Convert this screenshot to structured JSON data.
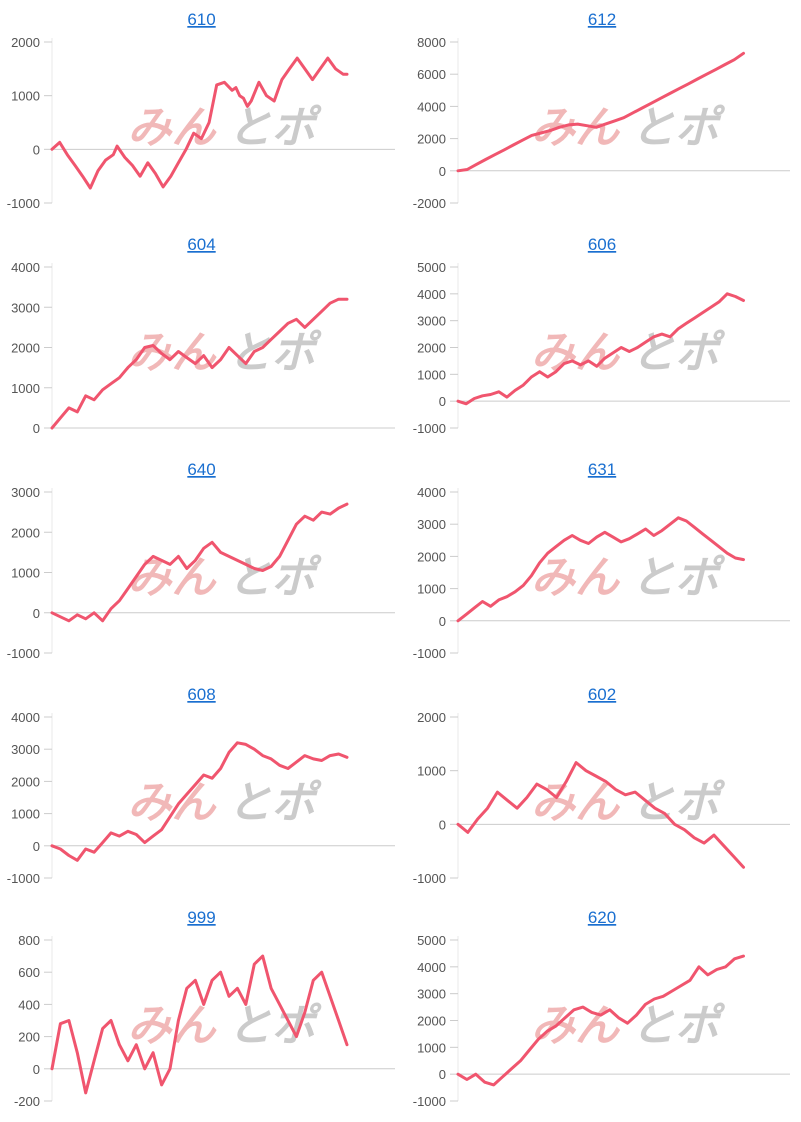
{
  "colors": {
    "line": "#f0556e",
    "title": "#1a6fd0",
    "tick_label": "#555555",
    "baseline": "#cccccc",
    "axis": "#e8e8e8",
    "watermark_left": "#e88a8a",
    "watermark_right": "#a9a9a9"
  },
  "watermark": {
    "left": "みん",
    "right": "とポ"
  },
  "chart_data": [
    {
      "type": "line",
      "title": "610",
      "ylim": [
        -1000,
        2000
      ],
      "yticks": [
        2000,
        1000,
        0,
        -1000
      ],
      "grid": false,
      "x": [
        0,
        2,
        4,
        6,
        8,
        10,
        12,
        14,
        16,
        17,
        19,
        21,
        23,
        25,
        27,
        29,
        31,
        33,
        35,
        37,
        39,
        41,
        43,
        45,
        47,
        48,
        49,
        50,
        51,
        52,
        54,
        56,
        58,
        59,
        60,
        62,
        64,
        66,
        68,
        70,
        72,
        74,
        76,
        77
      ],
      "values": [
        0,
        130,
        -100,
        -300,
        -500,
        -720,
        -400,
        -200,
        -100,
        60,
        -150,
        -300,
        -500,
        -250,
        -450,
        -700,
        -500,
        -250,
        0,
        300,
        200,
        500,
        1200,
        1250,
        1100,
        1150,
        1000,
        950,
        800,
        900,
        1250,
        1000,
        900,
        1100,
        1300,
        1500,
        1700,
        1500,
        1300,
        1500,
        1700,
        1500,
        1400,
        1400
      ]
    },
    {
      "type": "line",
      "title": "612",
      "ylim": [
        -2000,
        8000
      ],
      "yticks": [
        8000,
        6000,
        4000,
        2000,
        0,
        -2000
      ],
      "grid": false,
      "x": [
        0,
        2,
        4,
        6,
        8,
        10,
        12,
        14,
        16,
        18,
        20,
        22,
        24,
        26,
        28,
        30,
        32,
        34,
        36,
        38,
        40,
        42,
        44,
        46,
        48,
        50,
        52,
        54,
        56,
        58,
        60,
        62
      ],
      "values": [
        0,
        80,
        400,
        700,
        1000,
        1300,
        1600,
        1900,
        2200,
        2350,
        2500,
        2700,
        2850,
        2900,
        2800,
        2700,
        2900,
        3100,
        3300,
        3600,
        3900,
        4200,
        4500,
        4800,
        5100,
        5400,
        5700,
        6000,
        6300,
        6600,
        6900,
        7300
      ]
    },
    {
      "type": "line",
      "title": "604",
      "ylim": [
        0,
        4000
      ],
      "yticks": [
        4000,
        3000,
        2000,
        1000,
        0
      ],
      "grid": false,
      "x": [
        0,
        2,
        4,
        6,
        8,
        10,
        12,
        14,
        16,
        18,
        20,
        22,
        24,
        26,
        28,
        30,
        32,
        34,
        36,
        38,
        40,
        42,
        44,
        46,
        48,
        50,
        52,
        54,
        56,
        58,
        60,
        62,
        64,
        66,
        68,
        70
      ],
      "values": [
        0,
        250,
        500,
        400,
        800,
        700,
        950,
        1100,
        1250,
        1500,
        1700,
        2000,
        2050,
        1850,
        1700,
        1900,
        1750,
        1600,
        1800,
        1500,
        1700,
        2000,
        1800,
        1600,
        1900,
        2000,
        2200,
        2400,
        2600,
        2700,
        2500,
        2700,
        2900,
        3100,
        3200,
        3200
      ]
    },
    {
      "type": "line",
      "title": "606",
      "ylim": [
        -1000,
        5000
      ],
      "yticks": [
        5000,
        4000,
        3000,
        2000,
        1000,
        0,
        -1000
      ],
      "grid": false,
      "x": [
        0,
        2,
        4,
        6,
        8,
        10,
        12,
        14,
        16,
        18,
        20,
        22,
        24,
        26,
        28,
        30,
        32,
        34,
        36,
        38,
        40,
        42,
        44,
        46,
        48,
        50,
        52,
        54,
        56,
        58,
        60,
        62,
        64,
        66,
        68,
        70
      ],
      "values": [
        0,
        -100,
        100,
        200,
        250,
        350,
        150,
        400,
        600,
        900,
        1100,
        900,
        1100,
        1400,
        1500,
        1350,
        1500,
        1300,
        1600,
        1800,
        2000,
        1850,
        2000,
        2200,
        2400,
        2500,
        2400,
        2700,
        2900,
        3100,
        3300,
        3500,
        3700,
        4000,
        3900,
        3750
      ]
    },
    {
      "type": "line",
      "title": "640",
      "ylim": [
        -1000,
        3000
      ],
      "yticks": [
        3000,
        2000,
        1000,
        0,
        -1000
      ],
      "grid": false,
      "x": [
        0,
        2,
        4,
        6,
        8,
        10,
        12,
        14,
        16,
        18,
        20,
        22,
        24,
        26,
        28,
        30,
        32,
        34,
        36,
        38,
        40,
        42,
        44,
        46,
        48,
        50,
        52,
        54,
        56,
        58,
        60,
        62,
        64,
        66,
        68,
        70
      ],
      "values": [
        0,
        -100,
        -200,
        -50,
        -150,
        0,
        -200,
        100,
        300,
        600,
        900,
        1200,
        1400,
        1300,
        1200,
        1400,
        1100,
        1300,
        1600,
        1750,
        1500,
        1400,
        1300,
        1200,
        1100,
        1050,
        1150,
        1400,
        1800,
        2200,
        2400,
        2300,
        2500,
        2450,
        2600,
        2700
      ]
    },
    {
      "type": "line",
      "title": "631",
      "ylim": [
        -1000,
        4000
      ],
      "yticks": [
        4000,
        3000,
        2000,
        1000,
        0,
        -1000
      ],
      "grid": false,
      "x": [
        0,
        2,
        4,
        6,
        8,
        10,
        12,
        14,
        16,
        18,
        20,
        22,
        24,
        26,
        28,
        30,
        32,
        34,
        36,
        38,
        40,
        42,
        44,
        46,
        48,
        50,
        52,
        54,
        56,
        58,
        60,
        62,
        64,
        66,
        68,
        70
      ],
      "values": [
        0,
        200,
        400,
        600,
        450,
        650,
        750,
        900,
        1100,
        1400,
        1800,
        2100,
        2300,
        2500,
        2650,
        2500,
        2400,
        2600,
        2750,
        2600,
        2450,
        2550,
        2700,
        2850,
        2650,
        2800,
        3000,
        3200,
        3100,
        2900,
        2700,
        2500,
        2300,
        2100,
        1950,
        1900
      ]
    },
    {
      "type": "line",
      "title": "608",
      "ylim": [
        -1000,
        4000
      ],
      "yticks": [
        4000,
        3000,
        2000,
        1000,
        0,
        -1000
      ],
      "grid": false,
      "x": [
        0,
        2,
        4,
        6,
        8,
        10,
        12,
        14,
        16,
        18,
        20,
        22,
        24,
        26,
        28,
        30,
        32,
        34,
        36,
        38,
        40,
        42,
        44,
        46,
        48,
        50,
        52,
        54,
        56,
        58,
        60,
        62,
        64,
        66,
        68,
        70
      ],
      "values": [
        0,
        -100,
        -300,
        -450,
        -100,
        -200,
        100,
        400,
        300,
        450,
        350,
        100,
        300,
        500,
        900,
        1300,
        1600,
        1900,
        2200,
        2100,
        2400,
        2900,
        3200,
        3150,
        3000,
        2800,
        2700,
        2500,
        2400,
        2600,
        2800,
        2700,
        2650,
        2800,
        2850,
        2750
      ]
    },
    {
      "type": "line",
      "title": "602",
      "ylim": [
        -1000,
        2000
      ],
      "yticks": [
        2000,
        1000,
        0,
        -1000
      ],
      "grid": false,
      "x": [
        0,
        2,
        4,
        6,
        8,
        10,
        12,
        14,
        16,
        18,
        20,
        22,
        24,
        26,
        28,
        30,
        32,
        34,
        36,
        38,
        40,
        42,
        44,
        46,
        48,
        50,
        52,
        54,
        56,
        58
      ],
      "values": [
        0,
        -150,
        100,
        300,
        600,
        450,
        300,
        500,
        750,
        650,
        500,
        800,
        1150,
        1000,
        900,
        800,
        650,
        550,
        600,
        450,
        300,
        200,
        0,
        -100,
        -250,
        -350,
        -200,
        -400,
        -600,
        -800
      ]
    },
    {
      "type": "line",
      "title": "999",
      "ylim": [
        -200,
        800
      ],
      "yticks": [
        800,
        600,
        400,
        200,
        0,
        -200
      ],
      "grid": false,
      "x": [
        0,
        2,
        4,
        6,
        8,
        10,
        12,
        14,
        16,
        18,
        20,
        22,
        24,
        26,
        28,
        30,
        32,
        34,
        36,
        38,
        40,
        42,
        44,
        46,
        48,
        50,
        52,
        54,
        56,
        58,
        60,
        62,
        64,
        66,
        68,
        70
      ],
      "values": [
        0,
        280,
        300,
        100,
        -150,
        50,
        250,
        300,
        150,
        50,
        150,
        0,
        100,
        -100,
        0,
        300,
        500,
        550,
        400,
        550,
        600,
        450,
        500,
        400,
        650,
        700,
        500,
        400,
        300,
        200,
        350,
        550,
        600,
        450,
        300,
        150
      ]
    },
    {
      "type": "line",
      "title": "620",
      "ylim": [
        -1000,
        5000
      ],
      "yticks": [
        5000,
        4000,
        3000,
        2000,
        1000,
        0,
        -1000
      ],
      "grid": false,
      "x": [
        0,
        2,
        4,
        6,
        8,
        10,
        12,
        14,
        16,
        18,
        20,
        22,
        24,
        26,
        28,
        30,
        32,
        34,
        36,
        38,
        40,
        42,
        44,
        46,
        48,
        50,
        52,
        54,
        56,
        58,
        60,
        62,
        64
      ],
      "values": [
        0,
        -200,
        0,
        -300,
        -400,
        -100,
        200,
        500,
        900,
        1300,
        1600,
        1800,
        2100,
        2400,
        2500,
        2300,
        2200,
        2400,
        2100,
        1900,
        2200,
        2600,
        2800,
        2900,
        3100,
        3300,
        3500,
        4000,
        3700,
        3900,
        4000,
        4300,
        4400
      ]
    }
  ]
}
